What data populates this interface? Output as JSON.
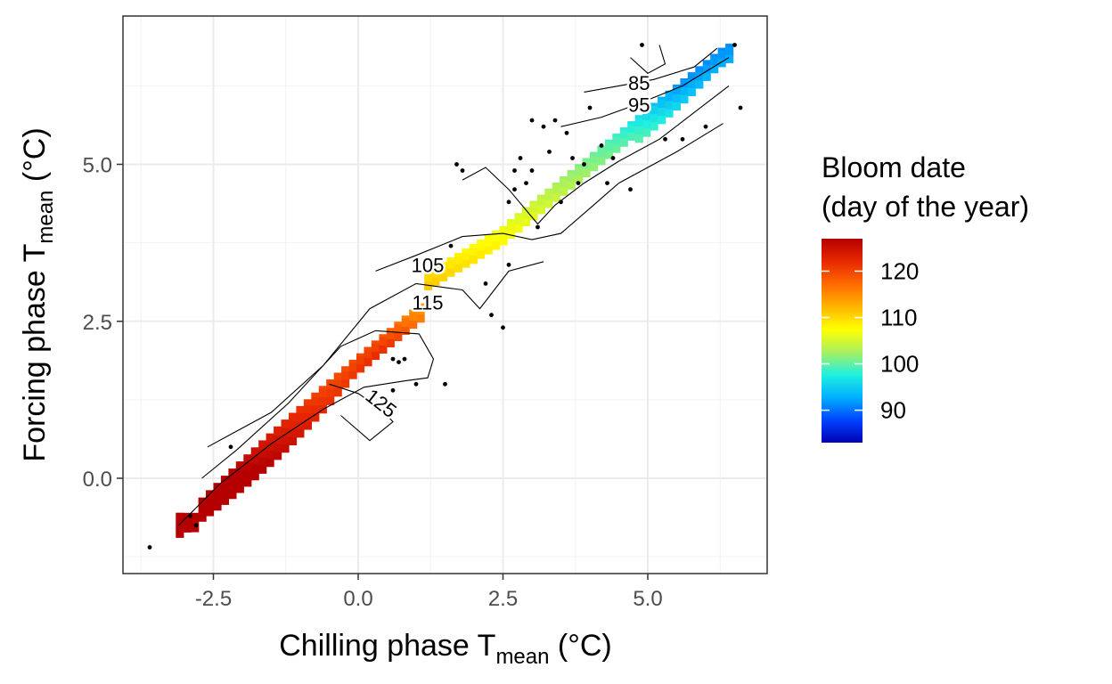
{
  "chart_data": {
    "type": "heatmap",
    "xlabel": {
      "main": "Chilling phase T",
      "sub": "mean",
      "unit": " (°C)"
    },
    "ylabel": {
      "main": "Forcing phase T",
      "sub": "mean",
      "unit": " (°C)"
    },
    "x_ticks": [
      {
        "value": -2.5,
        "label": "-2.5"
      },
      {
        "value": 0.0,
        "label": "0.0"
      },
      {
        "value": 2.5,
        "label": "2.5"
      },
      {
        "value": 5.0,
        "label": "5.0"
      }
    ],
    "y_ticks": [
      {
        "value": 0.0,
        "label": "0.0"
      },
      {
        "value": 2.5,
        "label": "2.5"
      },
      {
        "value": 5.0,
        "label": "5.0"
      }
    ],
    "xlim": [
      -3.9,
      7.1
    ],
    "ylim": [
      -1.5,
      7.6
    ],
    "grid": true,
    "legend": {
      "title": [
        "Bloom date",
        "(day of the year)"
      ],
      "position": "right",
      "range": [
        83,
        127
      ],
      "breaks": [
        {
          "value": 120,
          "label": "120"
        },
        {
          "value": 110,
          "label": "110"
        },
        {
          "value": 100,
          "label": "100"
        },
        {
          "value": 90,
          "label": "90"
        }
      ],
      "colors": [
        "#0000b4",
        "#0044ff",
        "#00b0ff",
        "#20f0e0",
        "#a8f060",
        "#ffff00",
        "#ffb400",
        "#ff6a00",
        "#e82800",
        "#b40000"
      ]
    },
    "contour_labels": [
      {
        "label": "85",
        "x": 4.85,
        "y": 6.3
      },
      {
        "label": "95",
        "x": 4.85,
        "y": 5.95
      },
      {
        "label": "105",
        "x": 1.2,
        "y": 3.4
      },
      {
        "label": "115",
        "x": 1.2,
        "y": 2.8
      },
      {
        "label": "125",
        "x": 0.4,
        "y": 1.2
      }
    ],
    "points": [
      [
        -3.6,
        -1.1
      ],
      [
        -2.9,
        -0.6
      ],
      [
        -2.8,
        -0.75
      ],
      [
        -2.2,
        0.5
      ],
      [
        0.6,
        1.9
      ],
      [
        0.7,
        1.85
      ],
      [
        0.8,
        1.9
      ],
      [
        0.6,
        1.4
      ],
      [
        1.0,
        1.5
      ],
      [
        1.5,
        1.5
      ],
      [
        1.6,
        3.7
      ],
      [
        1.7,
        5.0
      ],
      [
        1.8,
        4.9
      ],
      [
        2.2,
        3.1
      ],
      [
        2.3,
        2.6
      ],
      [
        2.5,
        2.4
      ],
      [
        2.6,
        3.4
      ],
      [
        2.6,
        4.4
      ],
      [
        2.7,
        4.6
      ],
      [
        2.7,
        4.9
      ],
      [
        2.8,
        5.1
      ],
      [
        2.9,
        4.7
      ],
      [
        3.0,
        4.9
      ],
      [
        3.0,
        5.7
      ],
      [
        3.1,
        4.0
      ],
      [
        3.2,
        5.6
      ],
      [
        3.3,
        5.2
      ],
      [
        3.4,
        5.7
      ],
      [
        3.5,
        4.4
      ],
      [
        3.6,
        5.5
      ],
      [
        3.7,
        5.1
      ],
      [
        3.8,
        4.7
      ],
      [
        3.9,
        5.0
      ],
      [
        4.0,
        5.9
      ],
      [
        4.2,
        5.3
      ],
      [
        4.3,
        4.7
      ],
      [
        4.4,
        5.1
      ],
      [
        4.7,
        4.6
      ],
      [
        4.9,
        6.9
      ],
      [
        5.3,
        5.4
      ],
      [
        5.6,
        5.4
      ],
      [
        6.0,
        5.6
      ],
      [
        6.5,
        6.9
      ],
      [
        6.6,
        5.9
      ]
    ]
  }
}
